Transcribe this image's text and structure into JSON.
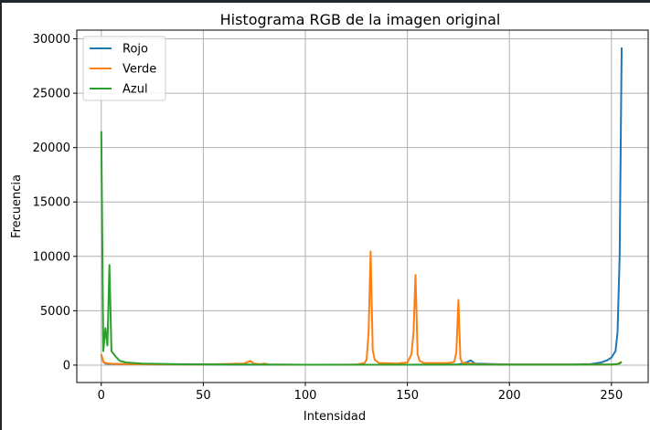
{
  "chart_data": {
    "type": "line",
    "title": "Histograma RGB de la imagen original",
    "xlabel": "Intensidad",
    "ylabel": "Frecuencia",
    "xlim": [
      -12,
      268
    ],
    "ylim": [
      -1600,
      30800
    ],
    "xticks": [
      0,
      50,
      100,
      150,
      200,
      250
    ],
    "yticks": [
      0,
      5000,
      10000,
      15000,
      20000,
      25000,
      30000
    ],
    "grid": true,
    "legend_position": "upper-left",
    "series": [
      {
        "name": "Rojo",
        "color": "#1f77b4",
        "points": [
          [
            0,
            950
          ],
          [
            1,
            300
          ],
          [
            2,
            150
          ],
          [
            5,
            100
          ],
          [
            20,
            80
          ],
          [
            60,
            50
          ],
          [
            100,
            40
          ],
          [
            150,
            40
          ],
          [
            175,
            60
          ],
          [
            179,
            250
          ],
          [
            181,
            450
          ],
          [
            183,
            150
          ],
          [
            200,
            60
          ],
          [
            230,
            50
          ],
          [
            240,
            100
          ],
          [
            245,
            250
          ],
          [
            248,
            450
          ],
          [
            250,
            700
          ],
          [
            252,
            1300
          ],
          [
            253,
            3000
          ],
          [
            254,
            10000
          ],
          [
            255,
            29200
          ]
        ]
      },
      {
        "name": "Verde",
        "color": "#ff7f0e",
        "points": [
          [
            0,
            1000
          ],
          [
            1,
            300
          ],
          [
            2,
            200
          ],
          [
            5,
            120
          ],
          [
            20,
            80
          ],
          [
            50,
            60
          ],
          [
            70,
            150
          ],
          [
            73,
            380
          ],
          [
            75,
            150
          ],
          [
            78,
            80
          ],
          [
            80,
            150
          ],
          [
            82,
            60
          ],
          [
            100,
            40
          ],
          [
            125,
            50
          ],
          [
            129,
            200
          ],
          [
            130,
            500
          ],
          [
            131,
            3000
          ],
          [
            132,
            10450
          ],
          [
            133,
            1400
          ],
          [
            134,
            500
          ],
          [
            136,
            200
          ],
          [
            145,
            150
          ],
          [
            150,
            250
          ],
          [
            152,
            1000
          ],
          [
            153,
            3000
          ],
          [
            154,
            8300
          ],
          [
            155,
            1000
          ],
          [
            156,
            400
          ],
          [
            158,
            200
          ],
          [
            170,
            200
          ],
          [
            173,
            300
          ],
          [
            174,
            1200
          ],
          [
            175,
            6000
          ],
          [
            176,
            600
          ],
          [
            177,
            200
          ],
          [
            185,
            80
          ],
          [
            200,
            60
          ],
          [
            250,
            60
          ],
          [
            253,
            100
          ],
          [
            255,
            300
          ]
        ]
      },
      {
        "name": "Azul",
        "color": "#2ca02c",
        "points": [
          [
            0,
            21500
          ],
          [
            1,
            1300
          ],
          [
            2,
            3400
          ],
          [
            3,
            1800
          ],
          [
            4,
            9200
          ],
          [
            5,
            1300
          ],
          [
            7,
            800
          ],
          [
            9,
            400
          ],
          [
            12,
            250
          ],
          [
            20,
            150
          ],
          [
            40,
            80
          ],
          [
            70,
            50
          ],
          [
            100,
            40
          ],
          [
            150,
            40
          ],
          [
            180,
            50
          ],
          [
            200,
            40
          ],
          [
            230,
            40
          ],
          [
            250,
            60
          ],
          [
            253,
            100
          ],
          [
            254,
            150
          ],
          [
            255,
            300
          ]
        ]
      }
    ]
  }
}
